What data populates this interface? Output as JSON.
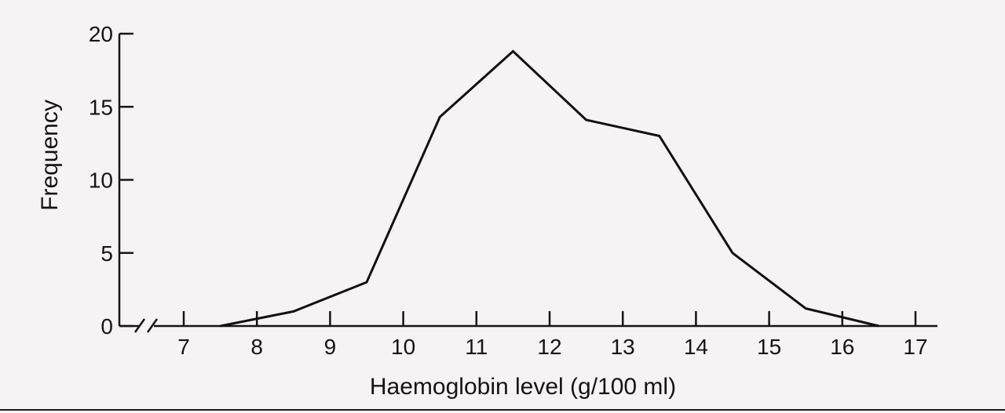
{
  "chart_data": {
    "type": "line",
    "title": "",
    "xlabel": "Haemoglobin level (g/100 ml)",
    "ylabel": "Frequency",
    "x_ticks": [
      "7",
      "8",
      "9",
      "10",
      "11",
      "12",
      "13",
      "14",
      "15",
      "16",
      "17"
    ],
    "y_ticks": [
      "0",
      "5",
      "10",
      "15",
      "20"
    ],
    "xlim": [
      7,
      17
    ],
    "ylim": [
      0,
      20
    ],
    "x_axis_break": true,
    "grid": false,
    "series": [
      {
        "x": [
          7.5,
          8.5,
          9.5,
          10.5,
          11.5,
          12.5,
          13.5,
          14.5,
          15.5,
          16.5
        ],
        "y": [
          0,
          1,
          3,
          14.3,
          18.8,
          14.1,
          13,
          5,
          1.2,
          0
        ],
        "color": "#111111"
      }
    ]
  }
}
